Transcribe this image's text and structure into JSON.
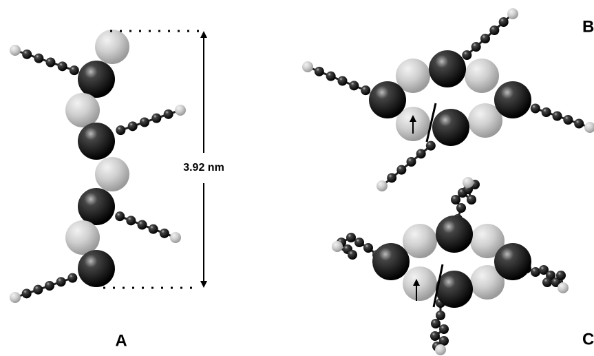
{
  "distance_label": "3.92 nm",
  "panel_labels": [
    "A",
    "B",
    "C"
  ]
}
